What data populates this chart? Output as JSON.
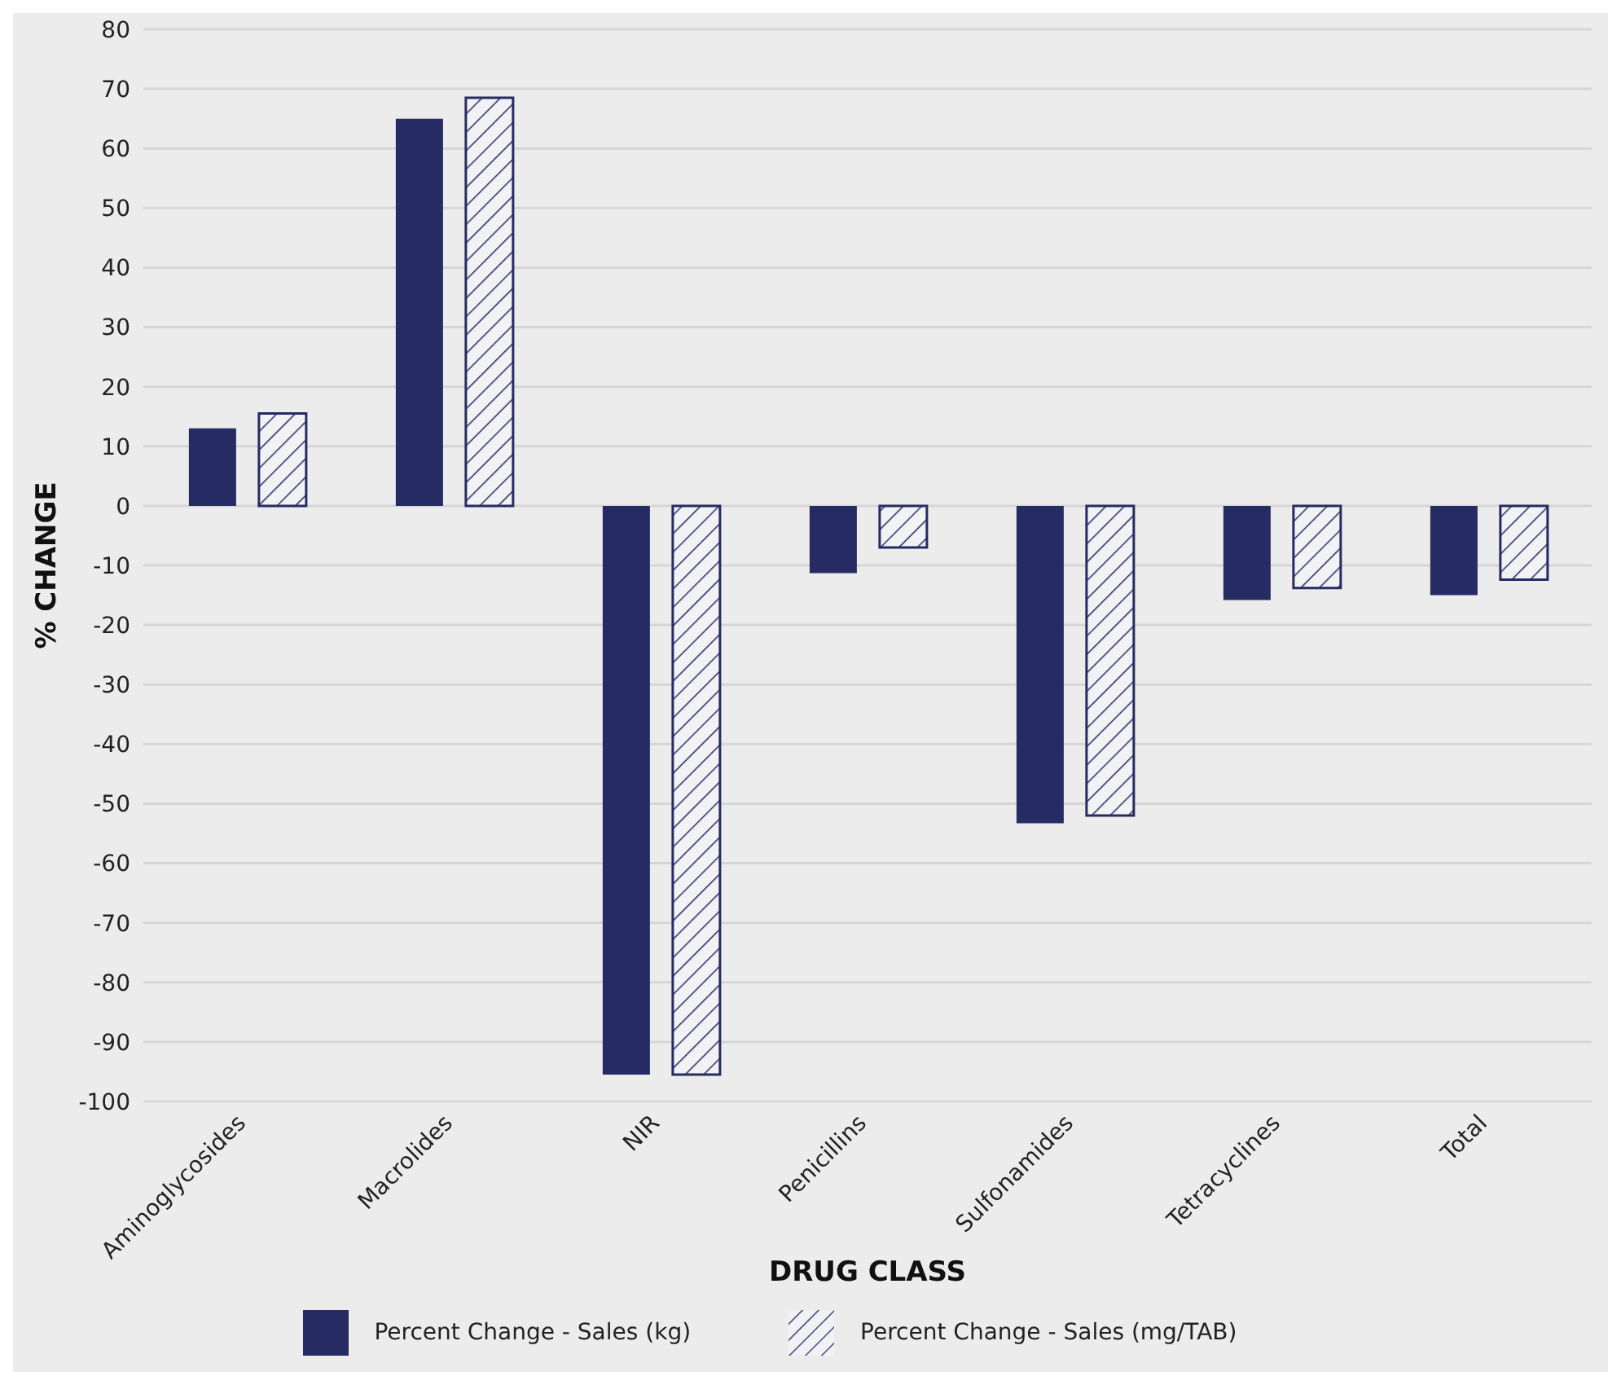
{
  "chart_data": {
    "type": "bar",
    "xlabel": "DRUG CLASS",
    "ylabel": "% CHANGE",
    "categories": [
      "Aminoglycosides",
      "Macrolides",
      "NIR",
      "Penicillins",
      "Sulfonamides",
      "Tetracyclines",
      "Total"
    ],
    "series": [
      {
        "name": "Percent Change - Sales (kg)",
        "color": "#262b63",
        "values": [
          13,
          65,
          -95.5,
          -11.3,
          -53.3,
          -15.8,
          -15
        ]
      },
      {
        "name": "Percent Change - Sales (mg/TAB)",
        "color": "#262b63",
        "values": [
          15.5,
          68.5,
          -95.5,
          -7,
          -52,
          -13.8,
          -12.4
        ]
      }
    ],
    "ylim": [
      -100,
      80
    ],
    "yticks": [
      -100,
      -90,
      -80,
      -70,
      -60,
      -50,
      -40,
      -30,
      -20,
      -10,
      0,
      10,
      20,
      30,
      40,
      50,
      60,
      70,
      80
    ],
    "grid": "y",
    "legend": "bottom"
  }
}
